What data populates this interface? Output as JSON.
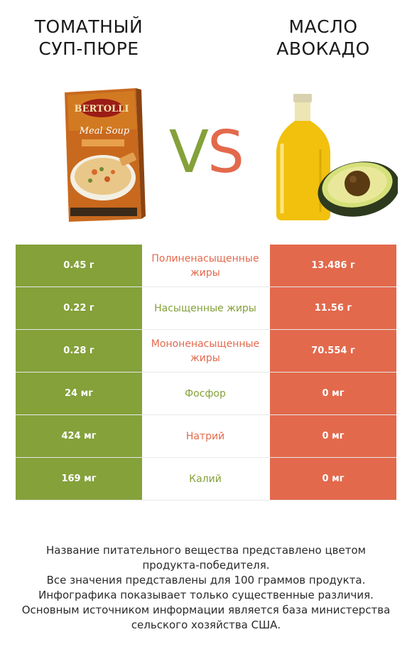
{
  "left_product": {
    "title_lines": [
      "ТОМАТНЫЙ",
      "СУП-ПЮРЕ"
    ],
    "image_brand": "BERTOLLI",
    "image_subtitle": "Meal Soup",
    "color": "#84a13a"
  },
  "right_product": {
    "title_lines": [
      "МАСЛО",
      "АВОКАДО"
    ],
    "color": "#e3694c"
  },
  "vs": {
    "v": "V",
    "s": "S"
  },
  "rows": [
    {
      "left": "0.45 г",
      "nutrient": "Полиненасыщенные жиры",
      "right": "13.486 г",
      "winner": "right"
    },
    {
      "left": "0.22 г",
      "nutrient": "Насыщенные жиры",
      "right": "11.56 г",
      "winner": "left"
    },
    {
      "left": "0.28 г",
      "nutrient": "Мононенасыщенные жиры",
      "right": "70.554 г",
      "winner": "right"
    },
    {
      "left": "24 мг",
      "nutrient": "Фосфор",
      "right": "0 мг",
      "winner": "left"
    },
    {
      "left": "424 мг",
      "nutrient": "Натрий",
      "right": "0 мг",
      "winner": "right"
    },
    {
      "left": "169 мг",
      "nutrient": "Калий",
      "right": "0 мг",
      "winner": "left"
    }
  ],
  "footnote_lines": [
    "Название питательного вещества представлено цветом",
    "продукта-победителя.",
    "Все значения представлены для 100 граммов продукта.",
    "Инфографика показывает только существенные различия.",
    "Основным источником информации является база министерства",
    "сельского хозяйства США."
  ]
}
